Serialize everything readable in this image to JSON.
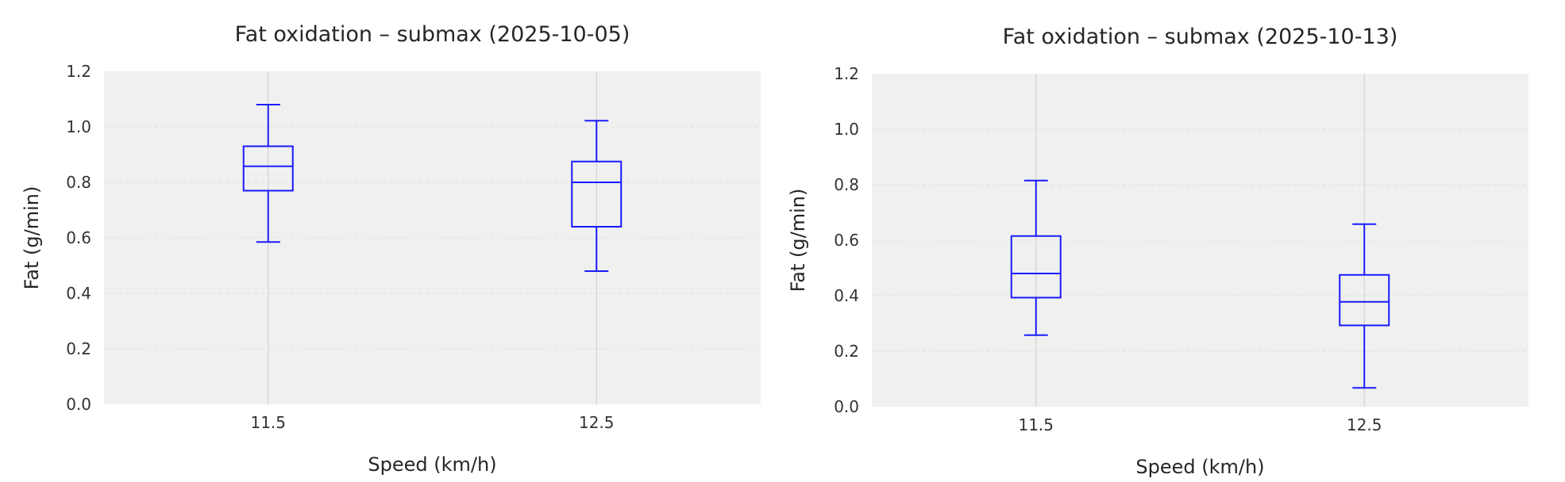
{
  "chart_data": [
    {
      "type": "box",
      "title": "Fat oxidation – submax (2025-10-05)",
      "xlabel": "Speed (km/h)",
      "ylabel": "Fat (g/min)",
      "categories": [
        "11.5",
        "12.5"
      ],
      "ylim": [
        0.0,
        1.2
      ],
      "yticks": [
        "0.0",
        "0.2",
        "0.4",
        "0.6",
        "0.8",
        "1.0",
        "1.2"
      ],
      "boxes": [
        {
          "whisker_low": 0.585,
          "q1": 0.77,
          "median": 0.858,
          "q3": 0.93,
          "whisker_high": 1.08
        },
        {
          "whisker_low": 0.48,
          "q1": 0.64,
          "median": 0.8,
          "q3": 0.875,
          "whisker_high": 1.022
        }
      ],
      "box_color": "#1a1aff",
      "background": "#f0f0f0",
      "grid": true
    },
    {
      "type": "box",
      "title": "Fat oxidation – submax (2025-10-13)",
      "xlabel": "Speed (km/h)",
      "ylabel": "Fat (g/min)",
      "categories": [
        "11.5",
        "12.5"
      ],
      "ylim": [
        0.0,
        1.2
      ],
      "yticks": [
        "0.0",
        "0.2",
        "0.4",
        "0.6",
        "0.8",
        "1.0",
        "1.2"
      ],
      "boxes": [
        {
          "whisker_low": 0.258,
          "q1": 0.393,
          "median": 0.48,
          "q3": 0.615,
          "whisker_high": 0.815
        },
        {
          "whisker_low": 0.068,
          "q1": 0.293,
          "median": 0.378,
          "q3": 0.475,
          "whisker_high": 0.658
        }
      ],
      "box_color": "#1a1aff",
      "background": "#f0f0f0",
      "grid": true
    }
  ]
}
